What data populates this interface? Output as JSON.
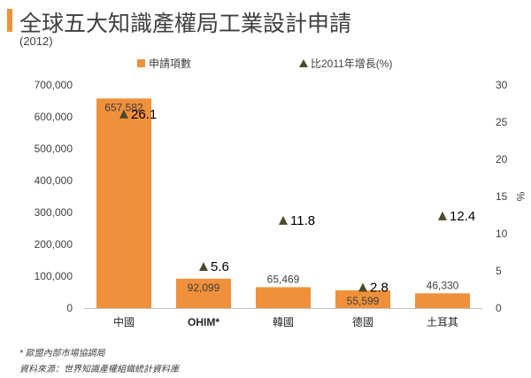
{
  "header": {
    "title": "全球五大知識產權局工業設計申請",
    "subtitle": "(2012)"
  },
  "footer": {
    "footnote": "* 歐盟內部市場協調局",
    "source": "資料來源：世界知識產權組織統計資料庫"
  },
  "colors": {
    "bar": "#f0903a",
    "marker": "#4a4a2a",
    "accent": "#f0903a"
  },
  "chart_data": {
    "type": "bar",
    "categories": [
      "中國",
      "OHIM*",
      "韓國",
      "德國",
      "土耳其"
    ],
    "series": [
      {
        "name": "申請項數",
        "type": "bar",
        "axis": "left",
        "values": [
          657582,
          92099,
          65469,
          55599,
          46330
        ],
        "labels": [
          "657,582",
          "92,099",
          "65,469",
          "55,599",
          "46,330"
        ]
      },
      {
        "name": "比2011年增長(%)",
        "type": "scatter",
        "marker": "triangle",
        "axis": "right",
        "values": [
          26.1,
          5.6,
          11.8,
          2.8,
          12.4
        ],
        "labels": [
          "26.1",
          "5.6",
          "11.8",
          "2.8",
          "12.4"
        ]
      }
    ],
    "y_left": {
      "min": 0,
      "max": 700000,
      "ticks": [
        "0",
        "100,000",
        "200,000",
        "300,000",
        "400,000",
        "500,000",
        "600,000",
        "700,000"
      ]
    },
    "y_right": {
      "min": 0,
      "max": 30,
      "label": "%",
      "ticks": [
        "0",
        "5",
        "10",
        "15",
        "20",
        "25",
        "30"
      ]
    },
    "legend": {
      "position": "top"
    },
    "grid": false
  }
}
